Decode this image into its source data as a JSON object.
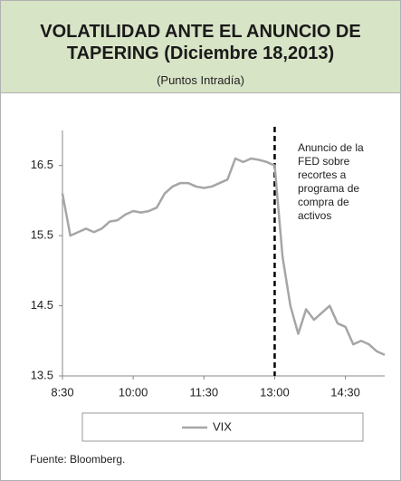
{
  "chart_data": {
    "type": "line",
    "title": "VOLATILIDAD ANTE EL ANUNCIO DE TAPERING (Diciembre 18,2013)",
    "subtitle": "(Puntos Intradía)",
    "x": [
      "8:30",
      "8:40",
      "8:50",
      "9:00",
      "9:10",
      "9:20",
      "9:30",
      "9:40",
      "9:50",
      "10:00",
      "10:10",
      "10:20",
      "10:30",
      "10:40",
      "10:50",
      "11:00",
      "11:10",
      "11:20",
      "11:30",
      "11:40",
      "11:50",
      "12:00",
      "12:10",
      "12:20",
      "12:30",
      "12:40",
      "12:50",
      "13:00",
      "13:10",
      "13:20",
      "13:30",
      "13:40",
      "13:50",
      "14:00",
      "14:10",
      "14:20",
      "14:30",
      "14:40",
      "14:50",
      "15:00",
      "15:10",
      "15:20"
    ],
    "series": [
      {
        "name": "VIX",
        "color": "#a6a6a6",
        "values": [
          16.1,
          15.5,
          15.55,
          15.6,
          15.55,
          15.6,
          15.7,
          15.72,
          15.8,
          15.85,
          15.83,
          15.85,
          15.9,
          16.1,
          16.2,
          16.25,
          16.25,
          16.2,
          16.18,
          16.2,
          16.25,
          16.3,
          16.6,
          16.55,
          16.6,
          16.58,
          16.55,
          16.5,
          15.2,
          14.5,
          14.1,
          14.45,
          14.3,
          14.4,
          14.5,
          14.25,
          14.2,
          13.95,
          14.0,
          13.95,
          13.85,
          13.8
        ]
      }
    ],
    "xlim": [
      "8:30",
      "15:20"
    ],
    "xticks": [
      "8:30",
      "10:00",
      "11:30",
      "13:00",
      "14:30"
    ],
    "ylim": [
      13.5,
      17
    ],
    "yticks": [
      13.5,
      14.5,
      15.5,
      16.5
    ],
    "annotation": {
      "text": "Anuncio de la FED sobre recortes a programa de compra de activos",
      "x": "13:00"
    },
    "legend": "bottom",
    "source": "Fuente:  Bloomberg."
  }
}
